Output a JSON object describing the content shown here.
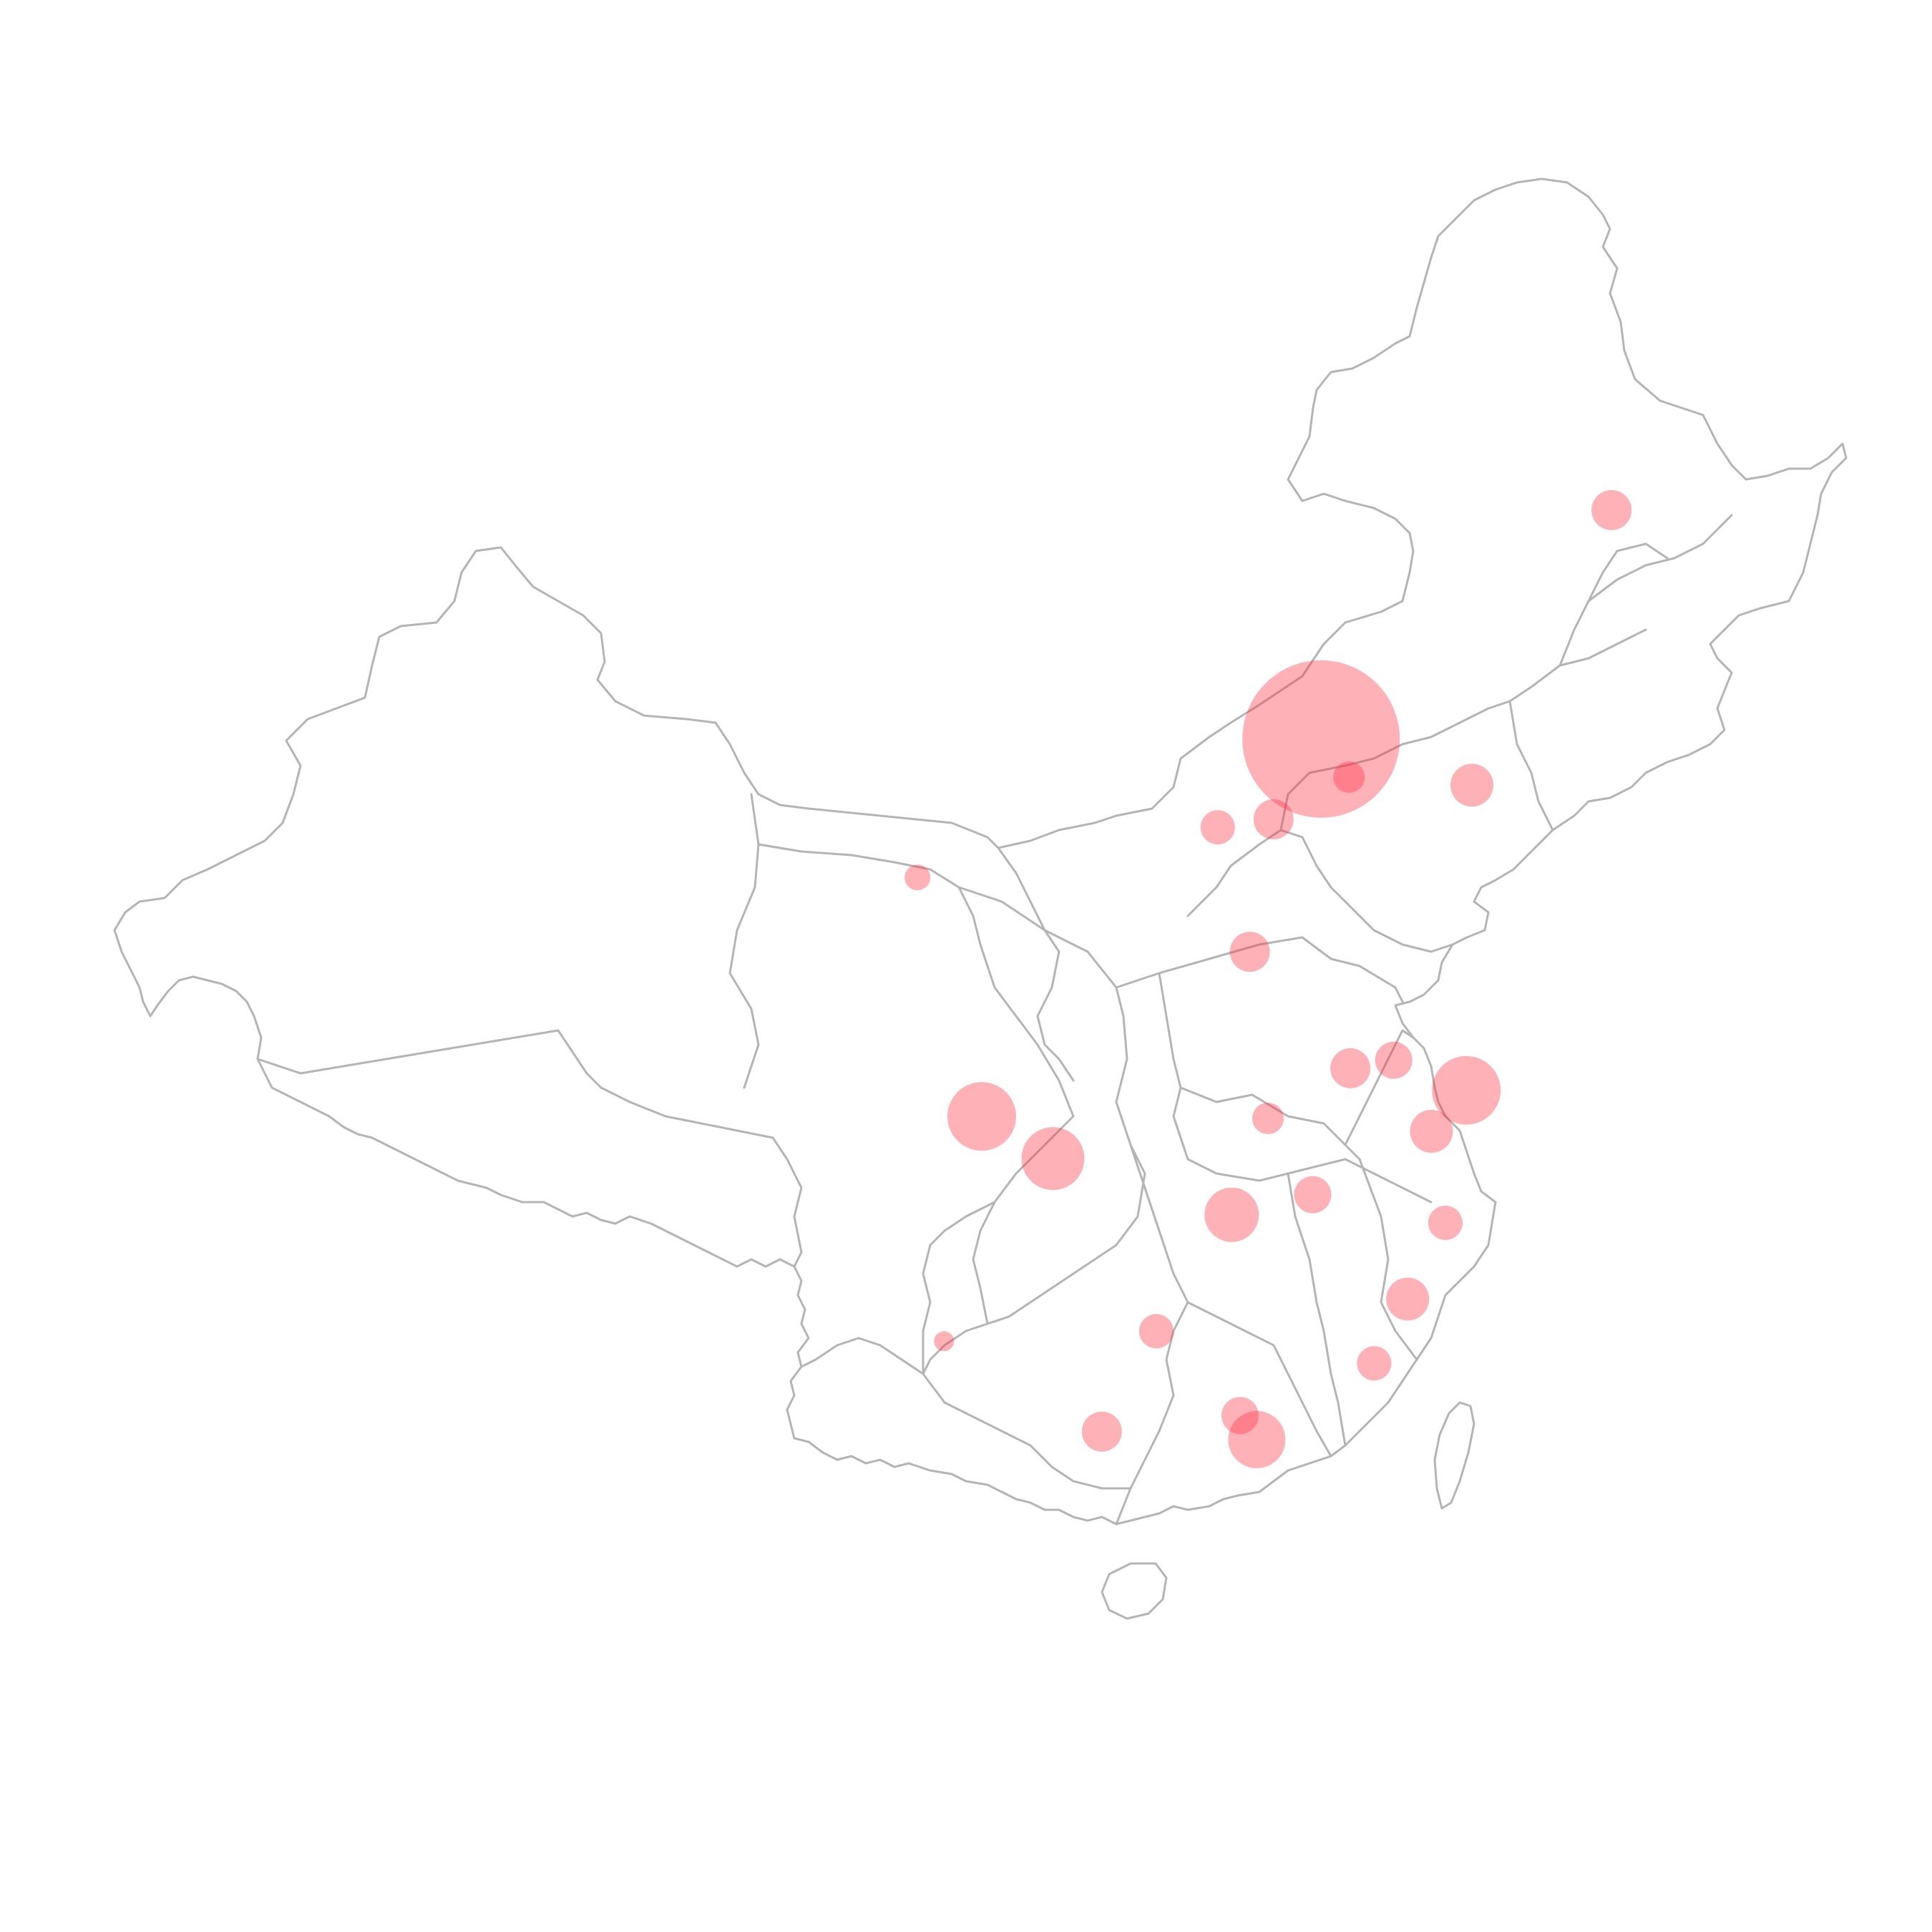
{
  "map": {
    "background_color": "#ffffff",
    "boundary_color": "#b4b4b4",
    "bubble_color": "#ff3344",
    "bubble_opacity": 0.38
  },
  "bubbles": [
    {
      "name": "bubble-beijing-region",
      "lon": 116.2,
      "lat": 40.05,
      "size": 110
    },
    {
      "name": "bubble-shanghai-region",
      "lon": 121.4,
      "lat": 31.3,
      "size": 48
    },
    {
      "name": "bubble-chengdu-region",
      "lon": 104.05,
      "lat": 30.65,
      "size": 48
    },
    {
      "name": "bubble-chongqing-region",
      "lon": 106.6,
      "lat": 29.6,
      "size": 44
    },
    {
      "name": "bubble-wuhan-region",
      "lon": 114.3,
      "lat": 30.6,
      "size": 22
    },
    {
      "name": "bubble-changsha-region",
      "lon": 113.0,
      "lat": 28.2,
      "size": 38
    },
    {
      "name": "bubble-shenzhen-region",
      "lon": 113.9,
      "lat": 22.6,
      "size": 40
    },
    {
      "name": "bubble-guangzhou-region",
      "lon": 113.3,
      "lat": 23.2,
      "size": 26
    },
    {
      "name": "bubble-nanjing-region",
      "lon": 118.8,
      "lat": 32.05,
      "size": 26
    },
    {
      "name": "bubble-hangzhou-region",
      "lon": 120.15,
      "lat": 30.28,
      "size": 30
    },
    {
      "name": "bubble-harbin-region",
      "lon": 126.6,
      "lat": 45.75,
      "size": 28
    },
    {
      "name": "bubble-dalian-region",
      "lon": 121.6,
      "lat": 38.9,
      "size": 30
    },
    {
      "name": "bubble-tianjin-region",
      "lon": 117.2,
      "lat": 39.1,
      "size": 22
    },
    {
      "name": "bubble-xining-region",
      "lon": 101.75,
      "lat": 36.6,
      "size": 18
    },
    {
      "name": "bubble-kunming-region",
      "lon": 102.7,
      "lat": 25.05,
      "size": 14
    },
    {
      "name": "bubble-nanning-region",
      "lon": 108.35,
      "lat": 22.8,
      "size": 28
    },
    {
      "name": "bubble-guilin-region",
      "lon": 110.3,
      "lat": 25.3,
      "size": 24
    },
    {
      "name": "bubble-xiamen-region",
      "lon": 118.1,
      "lat": 24.5,
      "size": 24
    },
    {
      "name": "bubble-fuzhou-region",
      "lon": 119.3,
      "lat": 26.1,
      "size": 30
    },
    {
      "name": "bubble-wenzhou-region",
      "lon": 120.65,
      "lat": 28.0,
      "size": 24
    },
    {
      "name": "bubble-nanchang-region",
      "lon": 115.9,
      "lat": 28.7,
      "size": 26
    },
    {
      "name": "bubble-hefei-region",
      "lon": 117.25,
      "lat": 31.85,
      "size": 28
    },
    {
      "name": "bubble-zhengzhou-region",
      "lon": 113.65,
      "lat": 34.75,
      "size": 28
    },
    {
      "name": "bubble-taiyuan-region",
      "lon": 112.5,
      "lat": 37.85,
      "size": 24
    },
    {
      "name": "bubble-shijiazhuang-region",
      "lon": 114.5,
      "lat": 38.05,
      "size": 28
    }
  ],
  "islands": [
    {
      "name": "taiwan-island"
    },
    {
      "name": "hainan-island"
    }
  ]
}
